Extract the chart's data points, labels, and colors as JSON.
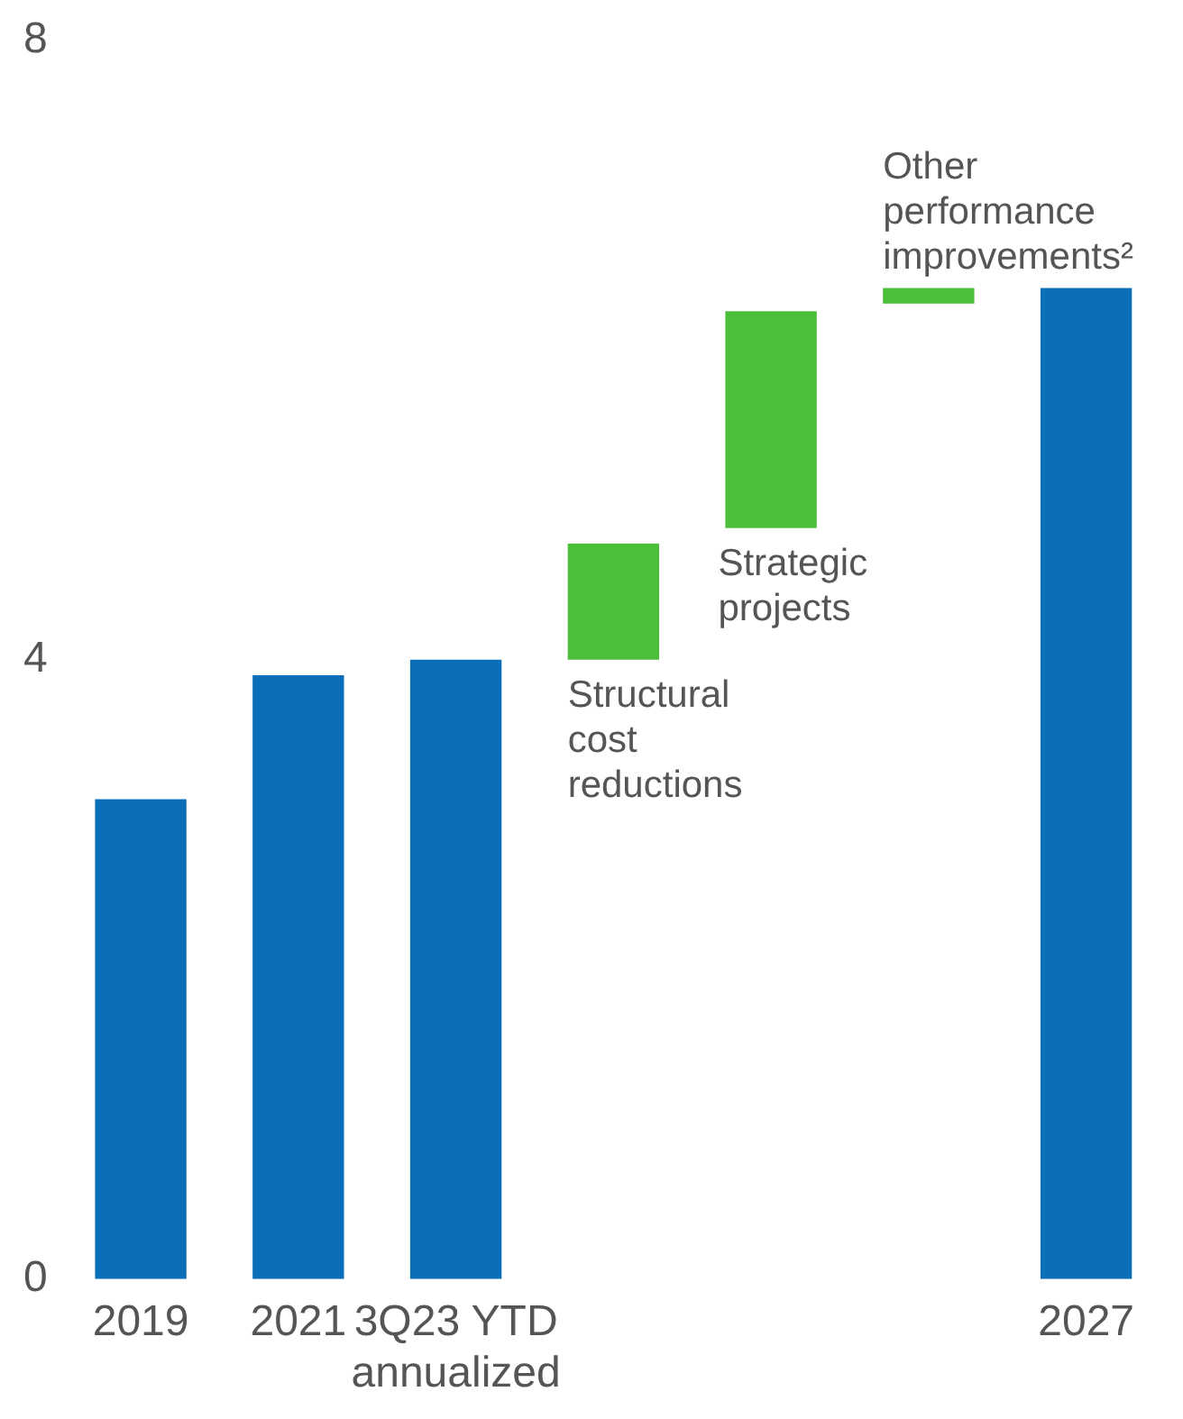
{
  "chart_data": {
    "type": "bar",
    "categories": [
      "2019",
      "2021",
      "3Q23 YTD annualized",
      null,
      null,
      null,
      "2027"
    ],
    "series": [
      {
        "color": "#0a6fb8",
        "values": [
          3.1,
          3.9,
          4.0,
          null,
          null,
          null,
          6.4
        ]
      },
      {
        "name": "Structural cost reductions",
        "color": "#4cbf3a",
        "values": [
          null,
          null,
          null,
          0.75,
          null,
          null,
          null
        ],
        "base": [
          null,
          null,
          null,
          4.0,
          null,
          null,
          null
        ]
      },
      {
        "name": "Strategic projects",
        "color": "#4cbf3a",
        "values": [
          null,
          null,
          null,
          null,
          1.4,
          null,
          null
        ],
        "base": [
          null,
          null,
          null,
          null,
          4.85,
          null,
          null
        ]
      },
      {
        "name": "Other performance improvements²",
        "color": "#4cbf3a",
        "values": [
          null,
          null,
          null,
          null,
          null,
          0.1,
          null
        ],
        "base": [
          null,
          null,
          null,
          null,
          null,
          6.3,
          null
        ]
      }
    ],
    "ylim": [
      0,
      8
    ],
    "yticks": [
      0,
      4,
      8
    ],
    "grid": false,
    "legend": false
  }
}
